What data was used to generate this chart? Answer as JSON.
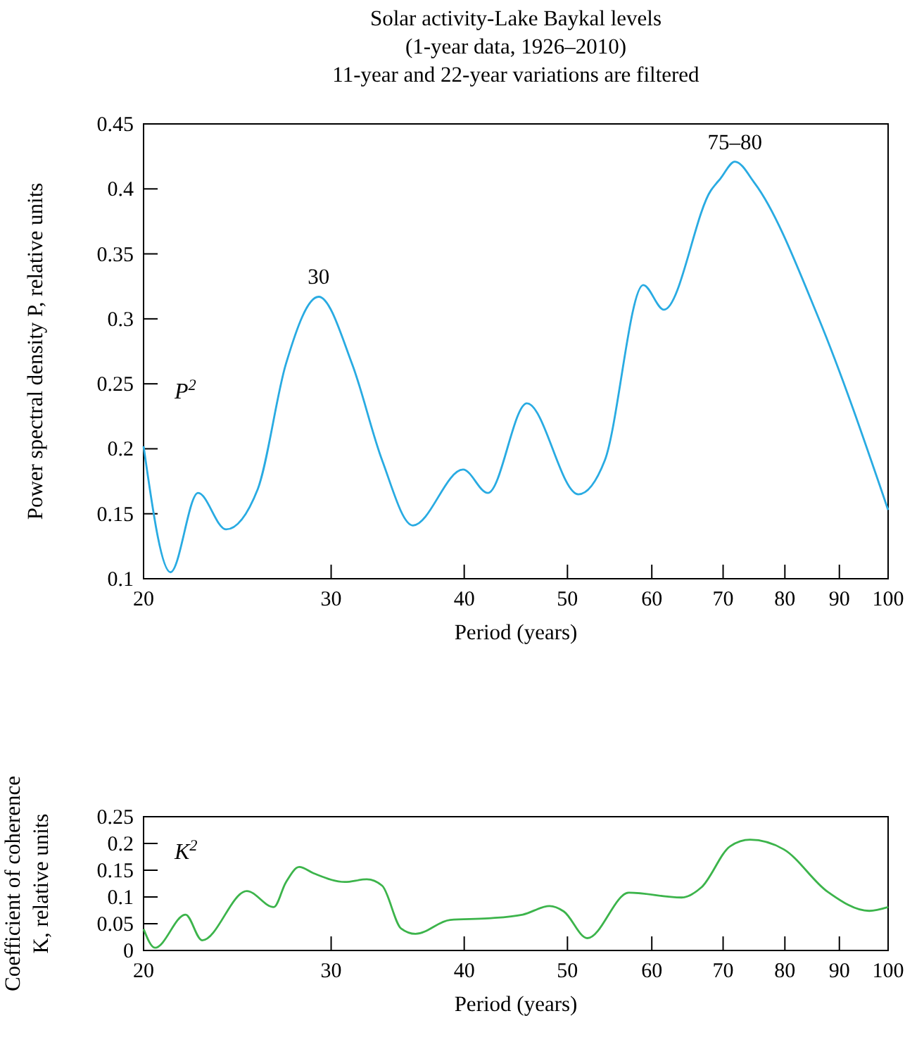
{
  "chart_data": [
    {
      "type": "line",
      "title": "Solar activity-Lake Baykal levels\n(1-year data, 1926–2010)\n11-year and 22-year variations are filtered",
      "xlabel": "Period (years)",
      "ylabel": "Power spectral density P, relative units",
      "log": "x",
      "xlim": [
        20,
        100
      ],
      "xticks": [
        20,
        30,
        40,
        50,
        60,
        70,
        80,
        90,
        100
      ],
      "ylim": [
        0.1,
        0.45
      ],
      "yticks": [
        0.1,
        0.15,
        0.2,
        0.25,
        0.3,
        0.35,
        0.4,
        0.45
      ],
      "grid": false,
      "annotations": [
        {
          "text": "30",
          "x": 29.2,
          "y": 0.317
        },
        {
          "text": "75–80",
          "x": 71.8,
          "y": 0.421
        }
      ],
      "series": [
        {
          "name": "P$^{2}$",
          "color": "#29abe2",
          "x": [
            20,
            21.2,
            22.5,
            23.9,
            25.6,
            27.2,
            29.2,
            31.4,
            33.5,
            35.8,
            39.9,
            42.1,
            45.8,
            51.2,
            54.2,
            58.9,
            61.6,
            68.2,
            69.6,
            71.8,
            75,
            86,
            100
          ],
          "values": [
            0.202,
            0.105,
            0.166,
            0.138,
            0.169,
            0.265,
            0.317,
            0.265,
            0.191,
            0.141,
            0.184,
            0.166,
            0.235,
            0.165,
            0.191,
            0.326,
            0.307,
            0.399,
            0.408,
            0.421,
            0.404,
            0.301,
            0.153
          ]
        }
      ]
    },
    {
      "type": "line",
      "xlabel": "Period (years)",
      "ylabel": "Coefficient of coherence\nK, relative units",
      "log": "x",
      "xlim": [
        20,
        100
      ],
      "xticks": [
        20,
        30,
        40,
        50,
        60,
        70,
        80,
        90,
        100
      ],
      "ylim": [
        0,
        0.25
      ],
      "yticks": [
        0,
        0.05,
        0.1,
        0.15,
        0.2,
        0.25
      ],
      "grid": false,
      "series": [
        {
          "name": "K$^{2}$",
          "color": "#3cb44b",
          "x": [
            20,
            20.5,
            21.9,
            22.7,
            25,
            26.5,
            27.2,
            28,
            28.9,
            30.9,
            32.4,
            33.5,
            34.9,
            36,
            38.8,
            42.1,
            45.4,
            48.1,
            49.6,
            52.2,
            57.1,
            64,
            66.8,
            71.1,
            74.2,
            79.8,
            87.7,
            96,
            100
          ],
          "values": [
            0.04,
            0.005,
            0.067,
            0.019,
            0.111,
            0.081,
            0.127,
            0.156,
            0.144,
            0.128,
            0.133,
            0.121,
            0.041,
            0.031,
            0.057,
            0.06,
            0.067,
            0.083,
            0.073,
            0.023,
            0.108,
            0.099,
            0.118,
            0.195,
            0.207,
            0.189,
            0.11,
            0.074,
            0.081
          ]
        }
      ]
    }
  ]
}
